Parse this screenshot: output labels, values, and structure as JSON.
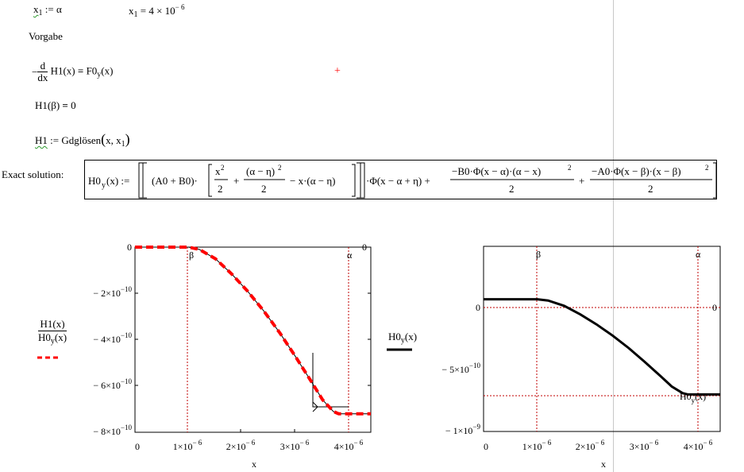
{
  "definitions": {
    "x1_def": "x1 := α",
    "x1_value": "x1 = 4 × 10⁻⁶",
    "vorgabe": "Vorgabe",
    "ode": "−d/dx H1(x) = F0y(x)",
    "boundary": "H1(β) = 0",
    "solve": "H1 := Gdglösen(x, x1)"
  },
  "exact": {
    "label": "Exact solution:",
    "formula": "H0y(x) := [[(A0 + B0)·[x²/2 + (α − η)²/2 − x·(α − η)]]·Φ(x − α + η) + −B0·Φ(x − α)·(α − x)²/2 + −A0·Φ(x − β)·(x − β)²/2"
  },
  "left_legend": {
    "top": "H1(x)",
    "bottom": "H0y(x)",
    "line_color": "#ff0000"
  },
  "right_legend": {
    "label": "H0y(x)",
    "line_color": "#000000"
  },
  "colors": {
    "marker": "#ff0000",
    "gridline": "#c00000"
  },
  "chart_data": [
    {
      "type": "line",
      "xlabel": "x",
      "ylabel": "",
      "xlim": [
        0,
        4.4e-06
      ],
      "ylim": [
        -8e-10,
        0
      ],
      "x_ticks": [
        "0",
        "1×10⁻⁶",
        "2×10⁻⁶",
        "3×10⁻⁶",
        "4×10⁻⁶"
      ],
      "y_ticks": [
        "0",
        "−2×10⁻¹⁰",
        "−4×10⁻¹⁰",
        "−6×10⁻¹⁰",
        "−8×10⁻¹⁰"
      ],
      "markers": [
        {
          "label": "β",
          "x": 1e-06
        },
        {
          "label": "α",
          "x": 4e-06
        },
        {
          "label": "0",
          "y": 0
        }
      ],
      "series": [
        {
          "name": "H1(x)",
          "x": [
            0,
            1e-06,
            1.2e-06,
            1.5e-06,
            1.8e-06,
            2.1e-06,
            2.4e-06,
            2.7e-06,
            3e-06,
            3.3e-06,
            3.5e-06,
            3.7e-06,
            3.8e-06,
            3.9e-06,
            4e-06,
            4.4e-06
          ],
          "y": [
            0,
            0,
            -1e-11,
            -5e-11,
            -1.15e-10,
            -1.9e-10,
            -2.75e-10,
            -3.7e-10,
            -4.75e-10,
            -5.85e-10,
            -6.6e-10,
            -7.1e-10,
            -7.2e-10,
            -7.2e-10,
            -7.2e-10,
            -7.2e-10
          ]
        },
        {
          "name": "H0y(x)",
          "x": [
            0,
            1e-06,
            1.2e-06,
            1.5e-06,
            1.8e-06,
            2.1e-06,
            2.4e-06,
            2.7e-06,
            3e-06,
            3.3e-06,
            3.5e-06,
            3.7e-06,
            3.8e-06,
            3.9e-06,
            4e-06,
            4.4e-06
          ],
          "y": [
            0,
            0,
            -1e-11,
            -5e-11,
            -1.15e-10,
            -1.9e-10,
            -2.75e-10,
            -3.7e-10,
            -4.75e-10,
            -5.85e-10,
            -6.6e-10,
            -7.1e-10,
            -7.2e-10,
            -7.2e-10,
            -7.2e-10,
            -7.2e-10
          ]
        }
      ]
    },
    {
      "type": "line",
      "xlabel": "x",
      "ylabel": "",
      "xlim": [
        0,
        4.4e-06
      ],
      "ylim": [
        -1e-09,
        4e-10
      ],
      "x_ticks": [
        "0",
        "1×10⁻⁶",
        "2×10⁻⁶",
        "3×10⁻⁶",
        "4×10⁻⁶"
      ],
      "y_ticks": [
        "0",
        "−5×10⁻¹⁰",
        "−1×10⁻⁹"
      ],
      "markers": [
        {
          "label": "β",
          "x": 1e-06
        },
        {
          "label": "α",
          "x": 4e-06
        },
        {
          "label": "0",
          "y": 0
        }
      ],
      "series": [
        {
          "name": "H0y(x)",
          "x": [
            0,
            1e-06,
            1.2e-06,
            1.5e-06,
            1.8e-06,
            2.1e-06,
            2.4e-06,
            2.7e-06,
            3e-06,
            3.3e-06,
            3.5e-06,
            3.7e-06,
            3.8e-06,
            3.9e-06,
            4e-06,
            4.4e-06
          ],
          "y": [
            0,
            0,
            -1e-11,
            -5e-11,
            -1.15e-10,
            -1.9e-10,
            -2.75e-10,
            -3.7e-10,
            -4.75e-10,
            -5.85e-10,
            -6.6e-10,
            -7.1e-10,
            -7.2e-10,
            -7.2e-10,
            -7.2e-10,
            -7.2e-10
          ]
        }
      ]
    }
  ]
}
